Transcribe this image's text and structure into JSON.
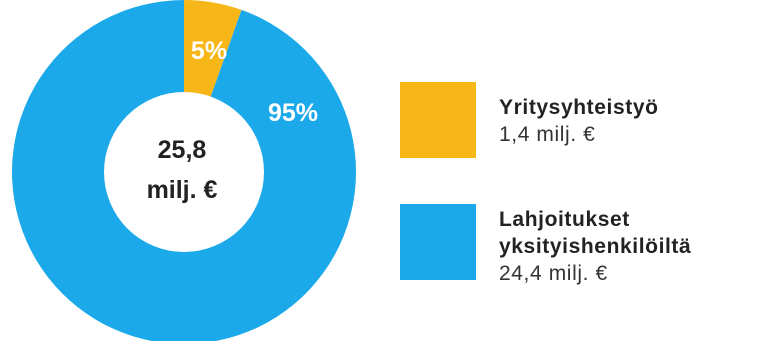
{
  "chart_data": {
    "type": "pie",
    "variant": "donut",
    "total_label": {
      "line1": "25,8",
      "line2": "milj. €"
    },
    "slices": [
      {
        "name": "Yritysyhteistyö",
        "percent_label": "5%",
        "value": 1.4,
        "value_label": "1,4 milj. €",
        "color": "#F7B719"
      },
      {
        "name": "Lahjoitukset\nyksityishenkilöiltä",
        "percent_label": "95%",
        "value": 24.4,
        "value_label": "24,4 milj. €",
        "color": "#1BA9EA"
      }
    ],
    "legend_position": "right"
  }
}
